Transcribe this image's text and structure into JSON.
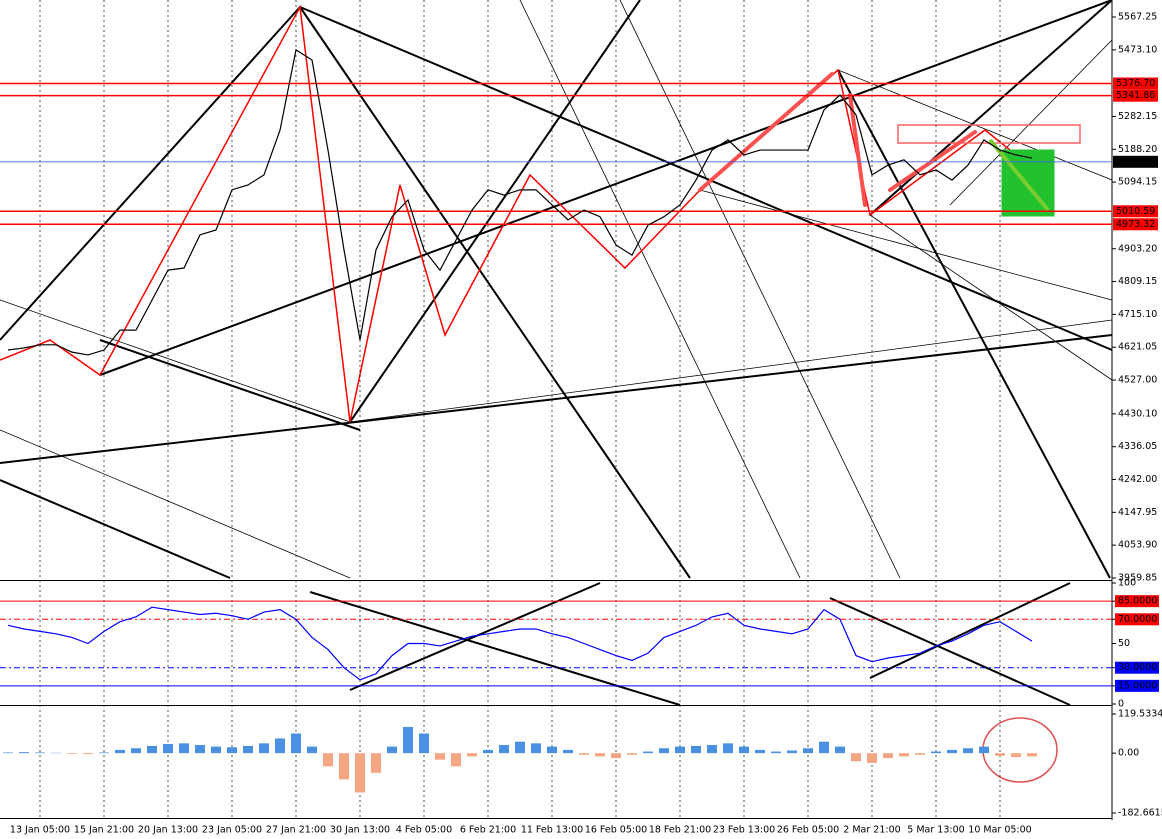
{
  "chart_data": [
    {
      "type": "line",
      "categories": [
        null,
        null,
        "13 Jan 05:00",
        null,
        null,
        null,
        "15 Jan 21:00",
        null,
        null,
        null,
        "20 Jan 13:00",
        null,
        null,
        null,
        "23 Jan 05:00",
        null,
        null,
        null,
        "27 Jan 21:00",
        null,
        null,
        null,
        "30 Jan 13:00",
        null,
        null,
        null,
        "4 Feb 05:00",
        null,
        null,
        null,
        "6 Feb 21:00",
        null,
        null,
        null,
        "11 Feb 13:00",
        null,
        null,
        null,
        "16 Feb 05:00",
        null,
        null,
        null,
        "18 Feb 21:00",
        null,
        null,
        null,
        "23 Feb 13:00",
        null,
        null,
        null,
        "26 Feb 05:00",
        null,
        null,
        null,
        "2 Mar 21:00",
        null,
        null,
        null,
        "5 Mar 13:00",
        null,
        null,
        null,
        "10 Mar 05:00",
        null,
        null
      ],
      "values": [
        4613,
        4619,
        4628,
        4628,
        4607,
        4599,
        4613,
        4670,
        4670,
        4756,
        4842,
        4848,
        4943,
        4957,
        5072,
        5086,
        5115,
        5243,
        5473,
        5444,
        5186,
        4900,
        4642,
        4900,
        4995,
        5043,
        4900,
        4842,
        4928,
        5014,
        5072,
        5057,
        5072,
        5072,
        5029,
        4986,
        5014,
        4995,
        4914,
        4885,
        4971,
        4995,
        5029,
        5100,
        5186,
        5215,
        5172,
        5186,
        5186,
        5186,
        5186,
        5301,
        5344,
        5287,
        5115,
        5143,
        5158,
        5115,
        5129,
        5100,
        5143,
        5215,
        5186,
        5172,
        5163
      ],
      "color": "#000000",
      "ylim": [
        3954,
        5616
      ],
      "yticks": [
        5567.25,
        {
          "value": 5473.1,
          "label": "5473.10"
        },
        {
          "value": 5282.15,
          "label": "5282.15"
        },
        {
          "value": 5188.2,
          "label": "5188.20"
        },
        {
          "value": 5094.15,
          "label": "5094.15"
        },
        {
          "value": 4903.2,
          "label": "4903.20"
        },
        {
          "value": 4809.15,
          "label": "4809.15"
        },
        {
          "value": 4715.1,
          "label": "4715.10"
        },
        4621.05,
        {
          "value": 4527,
          "label": "4527.00"
        },
        {
          "value": 4430.1,
          "label": "4430.10"
        },
        4336.05,
        {
          "value": 4242,
          "label": "4242.00"
        },
        4147.95,
        {
          "value": 4053.9,
          "label": "4053.90"
        },
        3959.85
      ],
      "levels": [
        {
          "value": 5376.7,
          "label": "5376.70",
          "color": "#ff0000"
        },
        {
          "value": 5341.86,
          "label": "5341.86",
          "color": "#ff0000"
        },
        {
          "value": 5152.35,
          "label": "5152.35",
          "color": "#4169e1"
        },
        {
          "value": 5010.59,
          "label": "5010.59",
          "color": "#ff0000"
        },
        {
          "value": 4973.32,
          "label": "4973.32",
          "color": "#ff0000"
        }
      ],
      "grid": true
    },
    {
      "type": "line",
      "values": [
        65,
        62,
        60,
        58,
        55,
        50,
        60,
        68,
        72,
        80,
        78,
        76,
        74,
        75,
        73,
        70,
        76,
        78,
        70,
        55,
        45,
        30,
        20,
        25,
        40,
        50,
        50,
        48,
        52,
        56,
        58,
        60,
        62,
        62,
        58,
        55,
        50,
        45,
        40,
        36,
        42,
        55,
        60,
        65,
        72,
        75,
        65,
        62,
        60,
        58,
        62,
        78,
        70,
        40,
        35,
        38,
        40,
        42,
        48,
        52,
        58,
        65,
        68,
        60,
        52
      ],
      "color": "#0000ff",
      "ylim": [
        0,
        100
      ],
      "yticks": [
        100,
        {
          "value": 85,
          "label": "85.0000"
        },
        {
          "value": 70,
          "label": "70.0000"
        },
        50,
        {
          "value": 30,
          "label": "30.0000"
        },
        {
          "value": 15,
          "label": "15.0000"
        },
        0
      ]
    },
    {
      "type": "bar",
      "values": [
        2,
        3,
        2,
        1,
        -2,
        -3,
        2,
        10,
        15,
        22,
        28,
        30,
        25,
        20,
        18,
        22,
        30,
        45,
        60,
        20,
        -40,
        -80,
        -120,
        -60,
        20,
        80,
        60,
        -20,
        -40,
        -10,
        10,
        25,
        35,
        30,
        20,
        10,
        -5,
        -10,
        -15,
        -5,
        5,
        15,
        20,
        22,
        25,
        30,
        20,
        10,
        5,
        8,
        15,
        35,
        20,
        -25,
        -30,
        -15,
        -10,
        -5,
        5,
        10,
        15,
        20,
        -8,
        -12,
        -10
      ],
      "color": "#4a90e2",
      "negative_color": "#f4a582",
      "ylim": [
        -182.6615,
        119.5334
      ],
      "yticks": [
        119.5334,
        {
          "value": 0,
          "label": "0.00"
        },
        -182.6615
      ]
    }
  ]
}
